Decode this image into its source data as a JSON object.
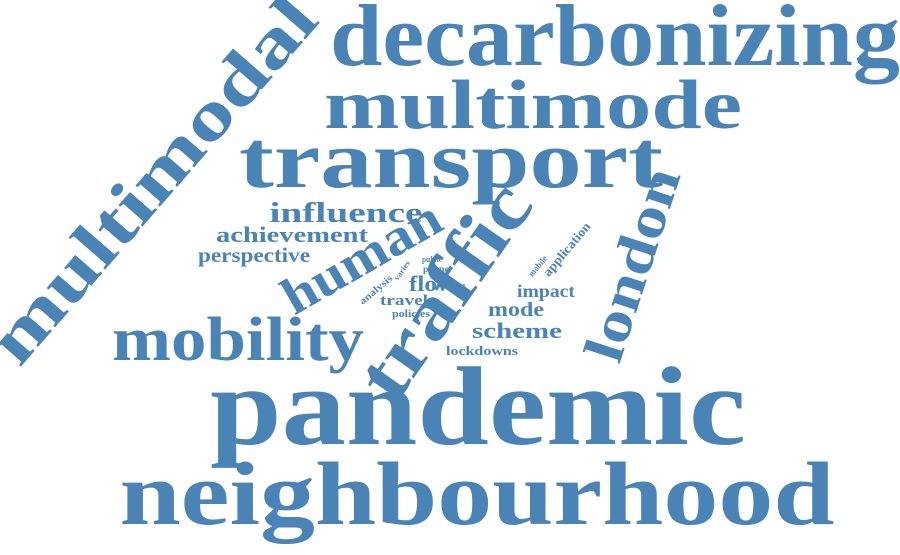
{
  "word_color": "#4a83b5",
  "background_color": "#ffffff",
  "words": [
    {
      "id": "decarbonizing",
      "text": "decarbonizing"
    },
    {
      "id": "multimode",
      "text": "multimode"
    },
    {
      "id": "transport",
      "text": "transport"
    },
    {
      "id": "multimodal",
      "text": "multimodal"
    },
    {
      "id": "influence",
      "text": "influence"
    },
    {
      "id": "achievement",
      "text": "achievement"
    },
    {
      "id": "perspective",
      "text": "perspective"
    },
    {
      "id": "human",
      "text": "human"
    },
    {
      "id": "traffic",
      "text": "traffic"
    },
    {
      "id": "london",
      "text": "london"
    },
    {
      "id": "application",
      "text": "application"
    },
    {
      "id": "mobile",
      "text": "mobile"
    },
    {
      "id": "public",
      "text": "public"
    },
    {
      "id": "phone",
      "text": "phone"
    },
    {
      "id": "varies",
      "text": "varies"
    },
    {
      "id": "analysis",
      "text": "analysis"
    },
    {
      "id": "flow",
      "text": "flow"
    },
    {
      "id": "two",
      "text": "two"
    },
    {
      "id": "impact",
      "text": "impact"
    },
    {
      "id": "travel",
      "text": "travel"
    },
    {
      "id": "mode",
      "text": "mode"
    },
    {
      "id": "policies",
      "text": "policies"
    },
    {
      "id": "scheme",
      "text": "scheme"
    },
    {
      "id": "mobility",
      "text": "mobility"
    },
    {
      "id": "lockdowns",
      "text": "lockdowns"
    },
    {
      "id": "pandemic",
      "text": "pandemic"
    },
    {
      "id": "neighbourhood",
      "text": "neighbourhood"
    }
  ]
}
